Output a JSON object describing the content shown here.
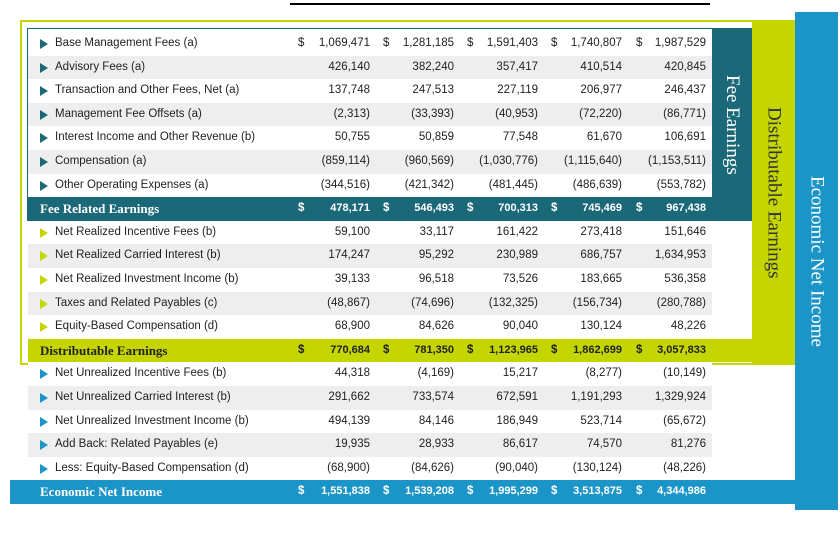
{
  "currency": "$",
  "sections": [
    {
      "label": "Fee Earnings",
      "rows": [
        {
          "label": "Base Management Fees (a)",
          "values": [
            "1,069,471",
            "1,281,185",
            "1,591,403",
            "1,740,807",
            "1,987,529"
          ]
        },
        {
          "label": "Advisory Fees (a)",
          "values": [
            "426,140",
            "382,240",
            "357,417",
            "410,514",
            "420,845"
          ]
        },
        {
          "label": "Transaction and Other Fees, Net (a)",
          "values": [
            "137,748",
            "247,513",
            "227,119",
            "206,977",
            "246,437"
          ]
        },
        {
          "label": "Management Fee Offsets (a)",
          "values": [
            "(2,313)",
            "(33,393)",
            "(40,953)",
            "(72,220)",
            "(86,771)"
          ]
        },
        {
          "label": "Interest Income and Other Revenue (b)",
          "values": [
            "50,755",
            "50,859",
            "77,548",
            "61,670",
            "106,691"
          ]
        },
        {
          "label": "Compensation (a)",
          "values": [
            "(859,114)",
            "(960,569)",
            "(1,030,776)",
            "(1,115,640)",
            "(1,153,511)"
          ]
        },
        {
          "label": "Other Operating Expenses (a)",
          "values": [
            "(344,516)",
            "(421,342)",
            "(481,445)",
            "(486,639)",
            "(553,782)"
          ]
        }
      ],
      "total": {
        "label": "Fee Related Earnings",
        "values": [
          "478,171",
          "546,493",
          "700,313",
          "745,469",
          "967,438"
        ]
      }
    },
    {
      "label": "Distributable Earnings",
      "rows": [
        {
          "label": "Net Realized Incentive Fees (b)",
          "values": [
            "59,100",
            "33,117",
            "161,422",
            "273,418",
            "151,646"
          ]
        },
        {
          "label": "Net Realized Carried Interest (b)",
          "values": [
            "174,247",
            "95,292",
            "230,989",
            "686,757",
            "1,634,953"
          ]
        },
        {
          "label": "Net Realized Investment Income (b)",
          "values": [
            "39,133",
            "96,518",
            "73,526",
            "183,665",
            "536,358"
          ]
        },
        {
          "label": "Taxes and Related Payables (c)",
          "values": [
            "(48,867)",
            "(74,696)",
            "(132,325)",
            "(156,734)",
            "(280,788)"
          ]
        },
        {
          "label": "Equity-Based Compensation (d)",
          "values": [
            "68,900",
            "84,626",
            "90,040",
            "130,124",
            "48,226"
          ]
        }
      ],
      "total": {
        "label": "Distributable Earnings",
        "values": [
          "770,684",
          "781,350",
          "1,123,965",
          "1,862,699",
          "3,057,833"
        ]
      }
    },
    {
      "label": "Economic Net Income",
      "rows": [
        {
          "label": "Net Unrealized Incentive Fees (b)",
          "values": [
            "44,318",
            "(4,169)",
            "15,217",
            "(8,277)",
            "(10,149)"
          ]
        },
        {
          "label": "Net Unrealized Carried Interest (b)",
          "values": [
            "291,662",
            "733,574",
            "672,591",
            "1,191,293",
            "1,329,924"
          ]
        },
        {
          "label": "Net Unrealized Investment Income (b)",
          "values": [
            "494,139",
            "84,146",
            "186,949",
            "523,714",
            "(65,672)"
          ]
        },
        {
          "label": "Add Back: Related Payables (e)",
          "values": [
            "19,935",
            "28,933",
            "86,617",
            "74,570",
            "81,276"
          ]
        },
        {
          "label": "Less: Equity-Based Compensation (d)",
          "values": [
            "(68,900)",
            "(84,626)",
            "(90,040)",
            "(130,124)",
            "(48,226)"
          ]
        }
      ],
      "total": {
        "label": "Economic Net Income",
        "values": [
          "1,551,838",
          "1,539,208",
          "1,995,299",
          "3,513,875",
          "4,344,986"
        ]
      }
    }
  ]
}
